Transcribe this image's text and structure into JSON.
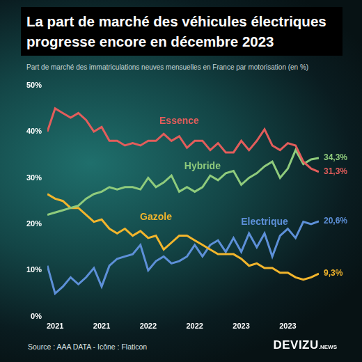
{
  "chart_data": {
    "type": "line",
    "title": [
      "La part de marché des véhicules électriques",
      "progresse encore en décembre 2023"
    ],
    "subtitle": "Part de marché des immatriculations neuves mensuelles en France par motorisation (en %)",
    "source": "Source : AAA DATA - Icône : Flaticon",
    "logo": {
      "name": "DEVIZU",
      "suffix": ".NEWS"
    },
    "categories": [
      null,
      "2021",
      null,
      null,
      null,
      null,
      null,
      "2021",
      null,
      null,
      null,
      null,
      null,
      "2022",
      null,
      null,
      null,
      null,
      null,
      "2022",
      null,
      null,
      null,
      null,
      null,
      "2023",
      null,
      null,
      null,
      null,
      null,
      "2023",
      null,
      null,
      null,
      null
    ],
    "series": [
      {
        "name": "Essence",
        "color": "#e35d5b",
        "values": [
          40.0,
          45.0,
          44.0,
          43.0,
          44.0,
          42.5,
          40.0,
          41.0,
          38.0,
          38.0,
          37.0,
          37.5,
          37.0,
          38.0,
          38.0,
          39.5,
          38.0,
          39.0,
          36.5,
          38.0,
          38.0,
          36.0,
          37.5,
          35.5,
          35.5,
          38.0,
          36.0,
          38.0,
          40.5,
          37.0,
          36.0,
          37.5,
          37.0,
          33.5,
          32.0,
          31.3
        ],
        "value_labels": [
          null,
          null,
          null,
          null,
          null,
          null,
          null,
          null,
          null,
          null,
          null,
          null,
          null,
          null,
          null,
          null,
          null,
          null,
          null,
          null,
          null,
          null,
          null,
          null,
          null,
          null,
          null,
          null,
          null,
          null,
          null,
          null,
          null,
          null,
          null,
          "31,3%"
        ]
      },
      {
        "name": "Hybride",
        "color": "#8fcb7c",
        "values": [
          22.0,
          22.5,
          23.0,
          23.5,
          24.0,
          25.5,
          26.5,
          27.0,
          28.0,
          27.5,
          28.0,
          28.0,
          27.5,
          30.0,
          28.0,
          29.0,
          30.5,
          27.0,
          28.0,
          27.0,
          28.0,
          30.5,
          29.5,
          31.0,
          31.5,
          28.5,
          30.0,
          31.0,
          32.5,
          33.5,
          30.0,
          32.0,
          36.0,
          33.0,
          34.0,
          34.3
        ],
        "value_labels": [
          null,
          null,
          null,
          null,
          null,
          null,
          null,
          null,
          null,
          null,
          null,
          null,
          null,
          null,
          null,
          null,
          null,
          null,
          null,
          null,
          null,
          null,
          null,
          null,
          null,
          null,
          null,
          null,
          null,
          null,
          null,
          null,
          null,
          null,
          null,
          "34,3%"
        ]
      },
      {
        "name": "Gazole",
        "color": "#f2b52c",
        "values": [
          26.5,
          25.5,
          25.0,
          23.5,
          23.5,
          22.0,
          20.5,
          21.0,
          19.0,
          18.0,
          19.0,
          17.5,
          18.5,
          17.0,
          17.5,
          14.5,
          16.0,
          17.5,
          17.5,
          16.5,
          15.5,
          14.5,
          13.5,
          13.5,
          13.5,
          12.5,
          11.0,
          11.5,
          10.5,
          10.5,
          9.5,
          9.5,
          8.5,
          8.0,
          8.5,
          9.3
        ],
        "value_labels": [
          null,
          null,
          null,
          null,
          null,
          null,
          null,
          null,
          null,
          null,
          null,
          null,
          null,
          null,
          null,
          null,
          null,
          null,
          null,
          null,
          null,
          null,
          null,
          null,
          null,
          null,
          null,
          null,
          null,
          null,
          null,
          null,
          null,
          null,
          null,
          "9,3%"
        ]
      },
      {
        "name": "Electrique",
        "color": "#5d90d8",
        "values": [
          11.0,
          5.0,
          6.5,
          8.5,
          7.0,
          8.5,
          10.5,
          6.5,
          11.0,
          12.5,
          13.0,
          13.5,
          15.5,
          10.0,
          12.0,
          13.0,
          11.5,
          12.0,
          13.0,
          15.5,
          13.0,
          15.5,
          16.5,
          14.0,
          17.0,
          14.0,
          18.0,
          15.0,
          18.0,
          13.0,
          17.5,
          19.0,
          17.0,
          20.5,
          20.0,
          20.6
        ],
        "value_labels": [
          null,
          null,
          null,
          null,
          null,
          null,
          null,
          null,
          null,
          null,
          null,
          null,
          null,
          null,
          null,
          null,
          null,
          null,
          null,
          null,
          null,
          null,
          null,
          null,
          null,
          null,
          null,
          null,
          null,
          null,
          null,
          null,
          null,
          null,
          null,
          "20,6%"
        ]
      }
    ],
    "ylim": [
      0,
      50
    ],
    "yticks": [
      {
        "value": 0,
        "label": "0%"
      },
      {
        "value": 10,
        "label": "10%"
      },
      {
        "value": 20,
        "label": "20%"
      },
      {
        "value": 30,
        "label": "30%"
      },
      {
        "value": 40,
        "label": "40%"
      },
      {
        "value": 50,
        "label": "50%"
      }
    ],
    "grid": false,
    "data_labels": true
  }
}
